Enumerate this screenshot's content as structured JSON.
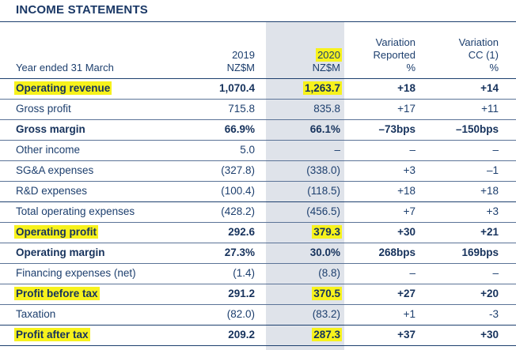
{
  "title": "INCOME STATEMENTS",
  "header": {
    "label": "Year ended 31 March",
    "col2019": [
      "2019",
      "NZ$M"
    ],
    "col2020": [
      "2020",
      "NZ$M"
    ],
    "colRep": [
      "Variation",
      "Reported",
      "%"
    ],
    "colCC": [
      "Variation",
      "CC (1)",
      "%"
    ]
  },
  "rows": [
    {
      "label": "Operating revenue",
      "v2019": "1,070.4",
      "v2020": "1,263.7",
      "rep": "+18",
      "cc": "+14",
      "bold": true,
      "hl_label": true,
      "hl_value": true
    },
    {
      "label": "Gross profit",
      "v2019": "715.8",
      "v2020": "835.8",
      "rep": "+17",
      "cc": "+11",
      "bold": false
    },
    {
      "label": "Gross margin",
      "v2019": "66.9%",
      "v2020": "66.1%",
      "rep": "–73bps",
      "cc": "–150bps",
      "bold": true
    },
    {
      "label": "Other income",
      "v2019": "5.0",
      "v2020": "–",
      "rep": "–",
      "cc": "–",
      "bold": false
    },
    {
      "label": "SG&A expenses",
      "v2019": "(327.8)",
      "v2020": "(338.0)",
      "rep": "+3",
      "cc": "–1",
      "bold": false
    },
    {
      "label": "R&D expenses",
      "v2019": "(100.4)",
      "v2020": "(118.5)",
      "rep": "+18",
      "cc": "+18",
      "bold": false
    },
    {
      "label": "Total operating expenses",
      "v2019": "(428.2)",
      "v2020": "(456.5)",
      "rep": "+7",
      "cc": "+3",
      "bold": false
    },
    {
      "label": "Operating profit",
      "v2019": "292.6",
      "v2020": "379.3",
      "rep": "+30",
      "cc": "+21",
      "bold": true,
      "hl_label": true,
      "hl_value": true
    },
    {
      "label": "Operating margin",
      "v2019": "27.3%",
      "v2020": "30.0%",
      "rep": "268bps",
      "cc": "169bps",
      "bold": true
    },
    {
      "label": "Financing expenses (net)",
      "v2019": "(1.4)",
      "v2020": "(8.8)",
      "rep": "–",
      "cc": "–",
      "bold": false
    },
    {
      "label": "Profit before tax",
      "v2019": "291.2",
      "v2020": "370.5",
      "rep": "+27",
      "cc": "+20",
      "bold": true,
      "hl_label": true,
      "hl_value": true
    },
    {
      "label": "Taxation",
      "v2019": "(82.0)",
      "v2020": "(83.2)",
      "rep": "+1",
      "cc": "-3",
      "bold": false
    },
    {
      "label": "Profit after tax",
      "v2019": "209.2",
      "v2020": "287.3",
      "rep": "+37",
      "cc": "+30",
      "bold": true,
      "hl_label": true,
      "hl_value": true
    }
  ],
  "colors": {
    "text": "#1d3f6e",
    "highlight": "#f7f21c",
    "shade": "#dfe3ea"
  }
}
